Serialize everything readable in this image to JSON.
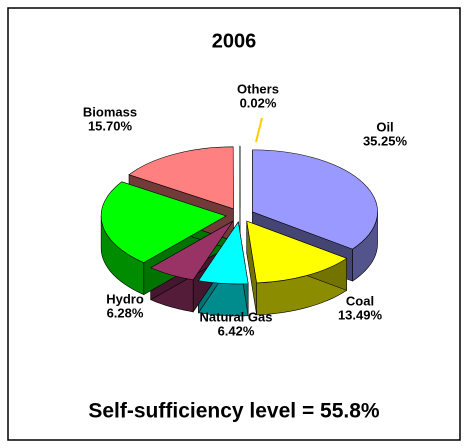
{
  "chart_data": {
    "type": "pie",
    "title": "2006",
    "categories": [
      "Oil",
      "Coal",
      "Natural Gas",
      "Hydro",
      null,
      "Biomass",
      "Others"
    ],
    "values": [
      35.25,
      13.49,
      6.42,
      6.28,
      22.84,
      15.7,
      0.02
    ],
    "value_labels": [
      "35.25%",
      "13.49%",
      "6.42%",
      "6.28%",
      null,
      "15.70%",
      "0.02%"
    ],
    "colors": [
      "#9999ff",
      "#ffff00",
      "#00ffff",
      "#993366",
      "#00ff00",
      "#ff8080",
      "#ffffff"
    ]
  },
  "footer": "Self-sufficiency level = 55.8%"
}
